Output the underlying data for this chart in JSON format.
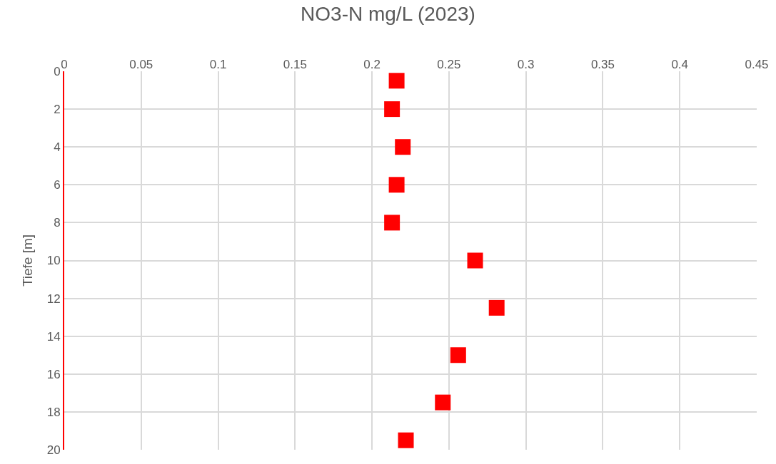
{
  "chart_data": {
    "type": "scatter",
    "title": "NO3-N mg/L (2023)",
    "ylabel": "Tiefe [m]",
    "series": [
      {
        "color": "#ff0000",
        "x": [
          0.216,
          0.213,
          0.22,
          0.216,
          0.213,
          0.267,
          0.281,
          0.256,
          0.246,
          0.222
        ],
        "values": [
          0.5,
          2,
          4,
          6,
          8,
          10,
          12.5,
          15,
          17.5,
          19.5
        ]
      }
    ],
    "xlim": [
      0,
      0.45
    ],
    "xticks": [
      0,
      0.05,
      0.1,
      0.15,
      0.2,
      0.25,
      0.3,
      0.35,
      0.4,
      0.45
    ],
    "ylim": [
      20,
      0
    ],
    "yticks": [
      0,
      2,
      4,
      6,
      8,
      10,
      12,
      14,
      16,
      18,
      20
    ],
    "grid": true,
    "marker": "square"
  }
}
